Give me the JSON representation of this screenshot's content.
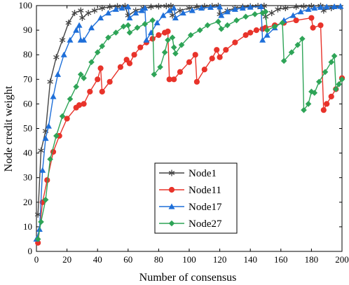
{
  "chart_data": {
    "type": "line",
    "title": "",
    "xlabel": "Number of consensus",
    "ylabel": "Node credit weight",
    "xlim": [
      0,
      200
    ],
    "ylim": [
      0,
      100
    ],
    "xticks": [
      0,
      20,
      40,
      60,
      80,
      100,
      120,
      140,
      160,
      180,
      200
    ],
    "yticks": [
      0,
      10,
      20,
      30,
      40,
      50,
      60,
      70,
      80,
      90,
      100
    ],
    "grid": false,
    "legend_position": "lower-center",
    "series": [
      {
        "name": "Node1",
        "color": "#444444",
        "marker": "asterisk",
        "points": [
          [
            1,
            15
          ],
          [
            3,
            41
          ],
          [
            6,
            49
          ],
          [
            9,
            69
          ],
          [
            13,
            79
          ],
          [
            17,
            86
          ],
          [
            21,
            93
          ],
          [
            25,
            97
          ],
          [
            29,
            98
          ],
          [
            30,
            95
          ],
          [
            34,
            97
          ],
          [
            38,
            98
          ],
          [
            43,
            99
          ],
          [
            48,
            99.5
          ],
          [
            53,
            99.7
          ],
          [
            58,
            99.8
          ],
          [
            60,
            96
          ],
          [
            65,
            98
          ],
          [
            70,
            99
          ],
          [
            75,
            99.5
          ],
          [
            80,
            99.7
          ],
          [
            85,
            99.8
          ],
          [
            88,
            99.9
          ],
          [
            89,
            96
          ],
          [
            94,
            98
          ],
          [
            100,
            99
          ],
          [
            105,
            99.5
          ],
          [
            110,
            99.7
          ],
          [
            115,
            99.8
          ],
          [
            119,
            99.9
          ],
          [
            120,
            96.5
          ],
          [
            125,
            98
          ],
          [
            130,
            99
          ],
          [
            135,
            99.5
          ],
          [
            140,
            99.7
          ],
          [
            145,
            99.8
          ],
          [
            149,
            99.9
          ],
          [
            150,
            95.5
          ],
          [
            154,
            97
          ],
          [
            158,
            98.5
          ],
          [
            163,
            99
          ],
          [
            170,
            99.5
          ],
          [
            175,
            99.7
          ],
          [
            180,
            99.8
          ],
          [
            186,
            99.9
          ],
          [
            188,
            98
          ],
          [
            193,
            99
          ],
          [
            199,
            99.5
          ]
        ]
      },
      {
        "name": "Node11",
        "color": "#e8332a",
        "marker": "circle",
        "points": [
          [
            1,
            3.5
          ],
          [
            4,
            20
          ],
          [
            7,
            29
          ],
          [
            11,
            40.5
          ],
          [
            15,
            47
          ],
          [
            20,
            54
          ],
          [
            26,
            58.5
          ],
          [
            28,
            59.5
          ],
          [
            31,
            60
          ],
          [
            35,
            65
          ],
          [
            40,
            70
          ],
          [
            42,
            74.5
          ],
          [
            43,
            65
          ],
          [
            48,
            69
          ],
          [
            55,
            75
          ],
          [
            59,
            78
          ],
          [
            61,
            76.5
          ],
          [
            64,
            80
          ],
          [
            68,
            83
          ],
          [
            72,
            85
          ],
          [
            76,
            86.5
          ],
          [
            80,
            88
          ],
          [
            84,
            89
          ],
          [
            86,
            89.5
          ],
          [
            87,
            70
          ],
          [
            90,
            70
          ],
          [
            94,
            73
          ],
          [
            100,
            77
          ],
          [
            104,
            80
          ],
          [
            105,
            69
          ],
          [
            110,
            74
          ],
          [
            115,
            78.5
          ],
          [
            118,
            82
          ],
          [
            120,
            79
          ],
          [
            124,
            82
          ],
          [
            130,
            85
          ],
          [
            137,
            88
          ],
          [
            140,
            89
          ],
          [
            144,
            90
          ],
          [
            148,
            90.5
          ],
          [
            150,
            91
          ],
          [
            156,
            92
          ],
          [
            162,
            93
          ],
          [
            170,
            94
          ],
          [
            180,
            95
          ],
          [
            181,
            91
          ],
          [
            186,
            92
          ],
          [
            188,
            57.5
          ],
          [
            190,
            60
          ],
          [
            193,
            63
          ],
          [
            196,
            66
          ],
          [
            200,
            70.5
          ]
        ]
      },
      {
        "name": "Node17",
        "color": "#1e6fd9",
        "marker": "triangle",
        "points": [
          [
            0,
            5
          ],
          [
            2,
            9
          ],
          [
            4,
            33
          ],
          [
            6,
            46
          ],
          [
            8,
            51
          ],
          [
            11,
            63
          ],
          [
            14,
            72
          ],
          [
            18,
            80
          ],
          [
            22,
            86
          ],
          [
            26,
            90
          ],
          [
            28,
            92
          ],
          [
            29,
            86
          ],
          [
            31,
            86
          ],
          [
            36,
            91
          ],
          [
            42,
            95
          ],
          [
            47,
            97
          ],
          [
            52,
            98.5
          ],
          [
            56,
            99
          ],
          [
            60,
            99.5
          ],
          [
            61,
            95
          ],
          [
            65,
            97
          ],
          [
            69,
            98
          ],
          [
            71,
            99
          ],
          [
            72,
            86
          ],
          [
            75,
            89
          ],
          [
            79,
            93
          ],
          [
            83,
            96
          ],
          [
            87,
            98
          ],
          [
            90,
            99
          ],
          [
            91,
            95
          ],
          [
            96,
            97
          ],
          [
            102,
            98
          ],
          [
            108,
            99
          ],
          [
            114,
            99.3
          ],
          [
            120,
            99.5
          ],
          [
            121,
            96
          ],
          [
            125,
            97.5
          ],
          [
            130,
            98.5
          ],
          [
            135,
            99
          ],
          [
            140,
            99.4
          ],
          [
            147,
            99.6
          ],
          [
            148,
            86
          ],
          [
            151,
            88
          ],
          [
            156,
            91
          ],
          [
            162,
            94
          ],
          [
            168,
            96
          ],
          [
            173,
            97.5
          ],
          [
            178,
            98.5
          ],
          [
            182,
            99
          ],
          [
            186,
            99.3
          ],
          [
            190,
            99.5
          ],
          [
            195,
            99.6
          ],
          [
            199,
            99.7
          ]
        ]
      },
      {
        "name": "Node27",
        "color": "#2ea457",
        "marker": "diamond",
        "points": [
          [
            1,
            5
          ],
          [
            3,
            12
          ],
          [
            6,
            21
          ],
          [
            9,
            37.5
          ],
          [
            13,
            47
          ],
          [
            17,
            55
          ],
          [
            22,
            62
          ],
          [
            26,
            67
          ],
          [
            29,
            72
          ],
          [
            31,
            70.5
          ],
          [
            36,
            77
          ],
          [
            40,
            81
          ],
          [
            43,
            83.5
          ],
          [
            47,
            87
          ],
          [
            52,
            89
          ],
          [
            57,
            91.5
          ],
          [
            60,
            92
          ],
          [
            61,
            89
          ],
          [
            66,
            91
          ],
          [
            71,
            92.5
          ],
          [
            76,
            94
          ],
          [
            77,
            72
          ],
          [
            81,
            75
          ],
          [
            84,
            81
          ],
          [
            86,
            86
          ],
          [
            89,
            87
          ],
          [
            90,
            83
          ],
          [
            91,
            80.5
          ],
          [
            95,
            84
          ],
          [
            101,
            88
          ],
          [
            107,
            90
          ],
          [
            112,
            92
          ],
          [
            119,
            93.5
          ],
          [
            121,
            90.5
          ],
          [
            125,
            92
          ],
          [
            131,
            94
          ],
          [
            137,
            95.5
          ],
          [
            143,
            96.5
          ],
          [
            148,
            97
          ],
          [
            150,
            97.5
          ],
          [
            151,
            90
          ],
          [
            156,
            91.5
          ],
          [
            161,
            93
          ],
          [
            162,
            77.5
          ],
          [
            167,
            81
          ],
          [
            171,
            84
          ],
          [
            174,
            86.5
          ],
          [
            175,
            57.5
          ],
          [
            178,
            60
          ],
          [
            180,
            65
          ],
          [
            182,
            64.5
          ],
          [
            185,
            69
          ],
          [
            189,
            73
          ],
          [
            193,
            77
          ],
          [
            195,
            79.5
          ],
          [
            196,
            66
          ],
          [
            198,
            68
          ],
          [
            200,
            70
          ]
        ]
      }
    ]
  }
}
